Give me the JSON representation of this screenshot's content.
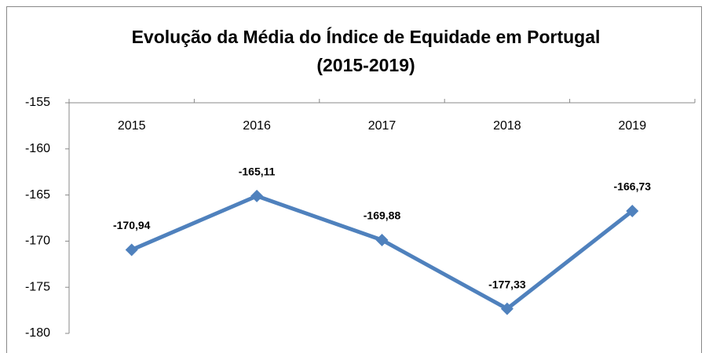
{
  "chart_data": {
    "type": "line",
    "title": [
      "Evolução da Média do Índice de Equidade em Portugal",
      "(2015-2019)"
    ],
    "categories": [
      "2015",
      "2016",
      "2017",
      "2018",
      "2019"
    ],
    "series": [
      {
        "name": "Média do Índice de Equidade",
        "color": "#4f81bd",
        "values": [
          -170.94,
          -165.11,
          -169.88,
          -177.33,
          -166.73
        ],
        "value_labels": [
          "-170,94",
          "-165,11",
          "-169,88",
          "-177,33",
          "-166,73"
        ]
      }
    ],
    "ylim": [
      -180,
      -155
    ],
    "yticks": [
      -180,
      -175,
      -170,
      -165,
      -160,
      -155
    ],
    "grid": false
  }
}
